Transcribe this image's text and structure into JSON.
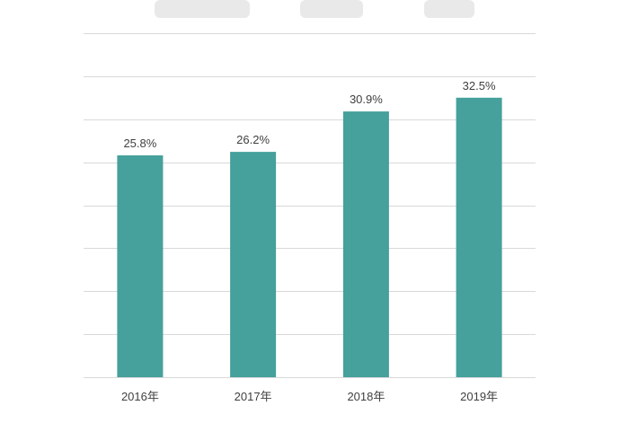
{
  "chart_data": {
    "type": "bar",
    "categories": [
      "2016年",
      "2017年",
      "2018年",
      "2019年"
    ],
    "values": [
      25.8,
      26.2,
      30.9,
      32.5
    ],
    "data_labels": [
      "25.8%",
      "26.2%",
      "30.9%",
      "32.5%"
    ],
    "unit": "%",
    "ylim": [
      0,
      40
    ],
    "grid": true,
    "legend": "none",
    "bar_color": "#46a09b",
    "gridline_color": "#d9d9d9"
  }
}
